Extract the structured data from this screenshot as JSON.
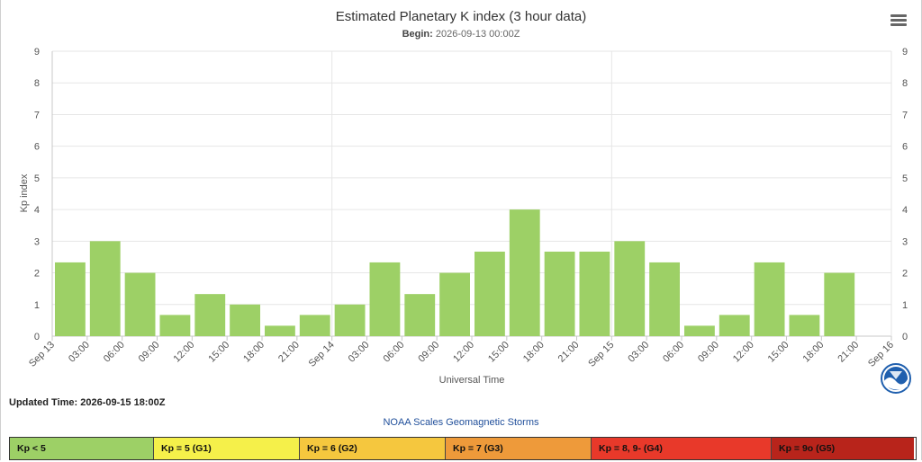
{
  "header": {
    "title": "Estimated Planetary K index (3 hour data)",
    "begin_label": "Begin:",
    "begin_value": "2026-09-13 00:00Z"
  },
  "footer": {
    "updated": "Updated Time: 2026-09-15 18:00Z",
    "scales_link": "NOAA Scales Geomagnetic Storms",
    "scales": [
      {
        "label": "Kp < 5",
        "color": "#9dd066"
      },
      {
        "label": "Kp = 5 (G1)",
        "color": "#f5f04a"
      },
      {
        "label": "Kp = 6 (G2)",
        "color": "#f5c73e"
      },
      {
        "label": "Kp = 7 (G3)",
        "color": "#ee9a3a"
      },
      {
        "label": "Kp = 8, 9- (G4)",
        "color": "#e8392a"
      },
      {
        "label": "Kp = 9o (G5)",
        "color": "#b8241b"
      }
    ]
  },
  "chart_data": {
    "type": "bar",
    "title": "Estimated Planetary K index (3 hour data)",
    "xlabel": "Universal Time",
    "ylabel": "Kp index",
    "ylim": [
      0,
      9
    ],
    "yticks": [
      0,
      1,
      2,
      3,
      4,
      5,
      6,
      7,
      8,
      9
    ],
    "x_tick_labels": [
      "Sep 13",
      "03:00",
      "06:00",
      "09:00",
      "12:00",
      "15:00",
      "18:00",
      "21:00",
      "Sep 14",
      "03:00",
      "06:00",
      "09:00",
      "12:00",
      "15:00",
      "18:00",
      "21:00",
      "Sep 15",
      "03:00",
      "06:00",
      "09:00",
      "12:00",
      "15:00",
      "18:00",
      "21:00",
      "Sep 16"
    ],
    "x": [
      "2026-09-13 00:00",
      "2026-09-13 03:00",
      "2026-09-13 06:00",
      "2026-09-13 09:00",
      "2026-09-13 12:00",
      "2026-09-13 15:00",
      "2026-09-13 18:00",
      "2026-09-13 21:00",
      "2026-09-14 00:00",
      "2026-09-14 03:00",
      "2026-09-14 06:00",
      "2026-09-14 09:00",
      "2026-09-14 12:00",
      "2026-09-14 15:00",
      "2026-09-14 18:00",
      "2026-09-14 21:00",
      "2026-09-15 00:00",
      "2026-09-15 03:00",
      "2026-09-15 06:00",
      "2026-09-15 09:00",
      "2026-09-15 12:00",
      "2026-09-15 15:00",
      "2026-09-15 18:00"
    ],
    "values": [
      2.33,
      3.0,
      2.0,
      0.67,
      1.33,
      1.0,
      0.33,
      0.67,
      1.0,
      2.33,
      1.33,
      2.0,
      2.67,
      4.0,
      2.67,
      2.67,
      3.0,
      2.33,
      0.33,
      0.67,
      2.33,
      0.67,
      2.0
    ],
    "bar_color": "#9dd066",
    "grid": true,
    "legend": "none"
  }
}
